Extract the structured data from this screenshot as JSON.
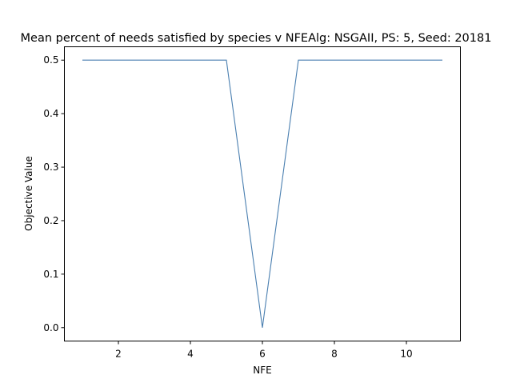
{
  "chart_data": {
    "type": "line",
    "title": "Mean percent of needs satisfied by species v NFEAlg: NSGAII, PS: 5, Seed: 20181",
    "xlabel": "NFE",
    "ylabel": "Objective Value",
    "xlim": [
      0.5,
      11.5
    ],
    "ylim": [
      -0.025,
      0.525
    ],
    "xticks": [
      2,
      4,
      6,
      8,
      10
    ],
    "xtick_labels": [
      "2",
      "4",
      "6",
      "8",
      "10"
    ],
    "yticks": [
      0.0,
      0.1,
      0.2,
      0.3,
      0.4,
      0.5
    ],
    "ytick_labels": [
      "0.0",
      "0.1",
      "0.2",
      "0.3",
      "0.4",
      "0.5"
    ],
    "grid": false,
    "series": [
      {
        "color": "#4a7fb0",
        "x": [
          1,
          2,
          3,
          4,
          5,
          6,
          7,
          8,
          9,
          10,
          11
        ],
        "y": [
          0.5,
          0.5,
          0.5,
          0.5,
          0.5,
          0.0,
          0.5,
          0.5,
          0.5,
          0.5,
          0.5
        ]
      }
    ]
  }
}
